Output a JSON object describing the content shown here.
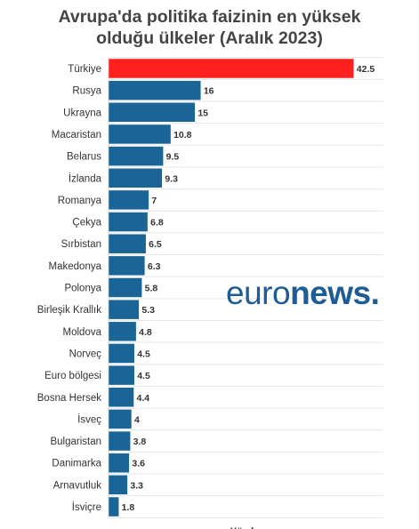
{
  "chart_data": {
    "type": "bar",
    "orientation": "horizontal",
    "title_line1": "Avrupa'da politika faizinin en yüksek",
    "title_line2": "olduğu ülkeler (Aralık 2023)",
    "categories": [
      "Türkiye",
      "Rusya",
      "Ukrayna",
      "Macaristan",
      "Belarus",
      "İzlanda",
      "Romanya",
      "Çekya",
      "Sırbistan",
      "Makedonya",
      "Polonya",
      "Birleşik Krallık",
      "Moldova",
      "Norveç",
      "Euro bölgesi",
      "Bosna Hersek",
      "İsveç",
      "Bulgaristan",
      "Danimarka",
      "Arnavutluk",
      "İsviçre"
    ],
    "values": [
      42.5,
      16,
      15,
      10.8,
      9.5,
      9.3,
      7,
      6.8,
      6.5,
      6.3,
      5.8,
      5.3,
      4.8,
      4.5,
      4.5,
      4.4,
      4,
      3.8,
      3.6,
      3.3,
      1.8
    ],
    "value_labels": [
      "42.5",
      "16",
      "15",
      "10.8",
      "9.5",
      "9.3",
      "7",
      "6.8",
      "6.5",
      "6.3",
      "5.8",
      "5.3",
      "4.8",
      "4.5",
      "4.5",
      "4.4",
      "4",
      "3.8",
      "3.6",
      "3.3",
      "1.8"
    ],
    "xlabel": "Yüzde",
    "xlim": [
      0,
      45
    ],
    "grid": true,
    "legend": "none",
    "colors": {
      "default_bar": "#1b6496",
      "highlight_bar": "#fe1f1f",
      "title": "#444444",
      "grid": "#e6e6e6"
    }
  },
  "logo": {
    "name": "euronews-logo",
    "text_light": "euro",
    "text_bold": "news."
  }
}
